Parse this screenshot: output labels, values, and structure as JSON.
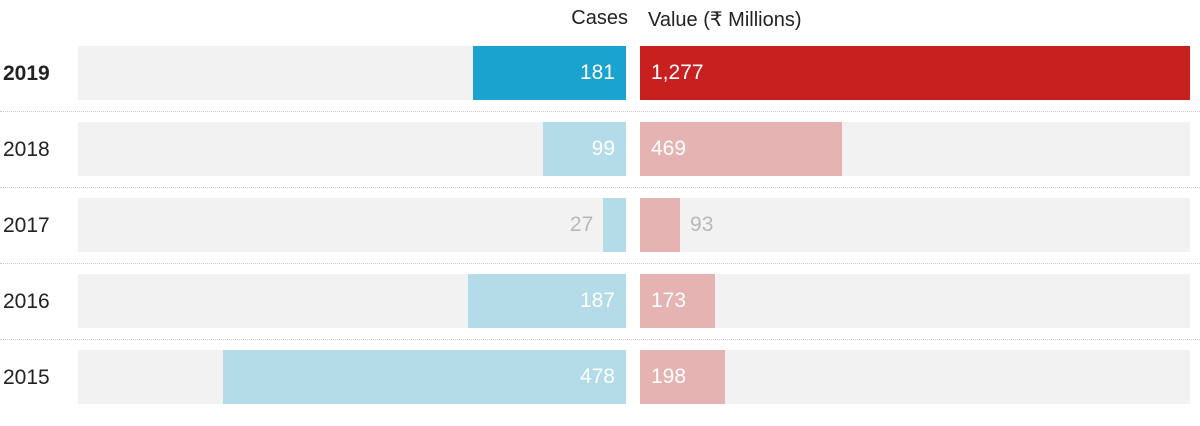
{
  "chart_data": {
    "type": "bar",
    "title": "",
    "xlabel": "",
    "ylabel": "",
    "categories": [
      "2019",
      "2018",
      "2017",
      "2016",
      "2015"
    ],
    "highlight_category": "2019",
    "series": [
      {
        "name": "Cases",
        "values": [
          181,
          99,
          27,
          187,
          478
        ],
        "value_labels": [
          "181",
          "99",
          "27",
          "187",
          "478"
        ],
        "direction": "leftward",
        "xlim": [
          0,
          650
        ],
        "color_highlight": "#1aa3cf",
        "color_muted": "#b3dbe8"
      },
      {
        "name": "Value (₹ Millions)",
        "values": [
          1277,
          469,
          93,
          173,
          198
        ],
        "value_labels": [
          "1,277",
          "469",
          "93",
          "173",
          "198"
        ],
        "direction": "rightward",
        "xlim": [
          0,
          1277
        ],
        "color_highlight": "#c81f1f",
        "color_muted": "#e6b3b3"
      }
    ],
    "grid": false,
    "legend": "none",
    "track_color": "#f2f2f2",
    "label_outside_color": "#b8b8b8"
  }
}
